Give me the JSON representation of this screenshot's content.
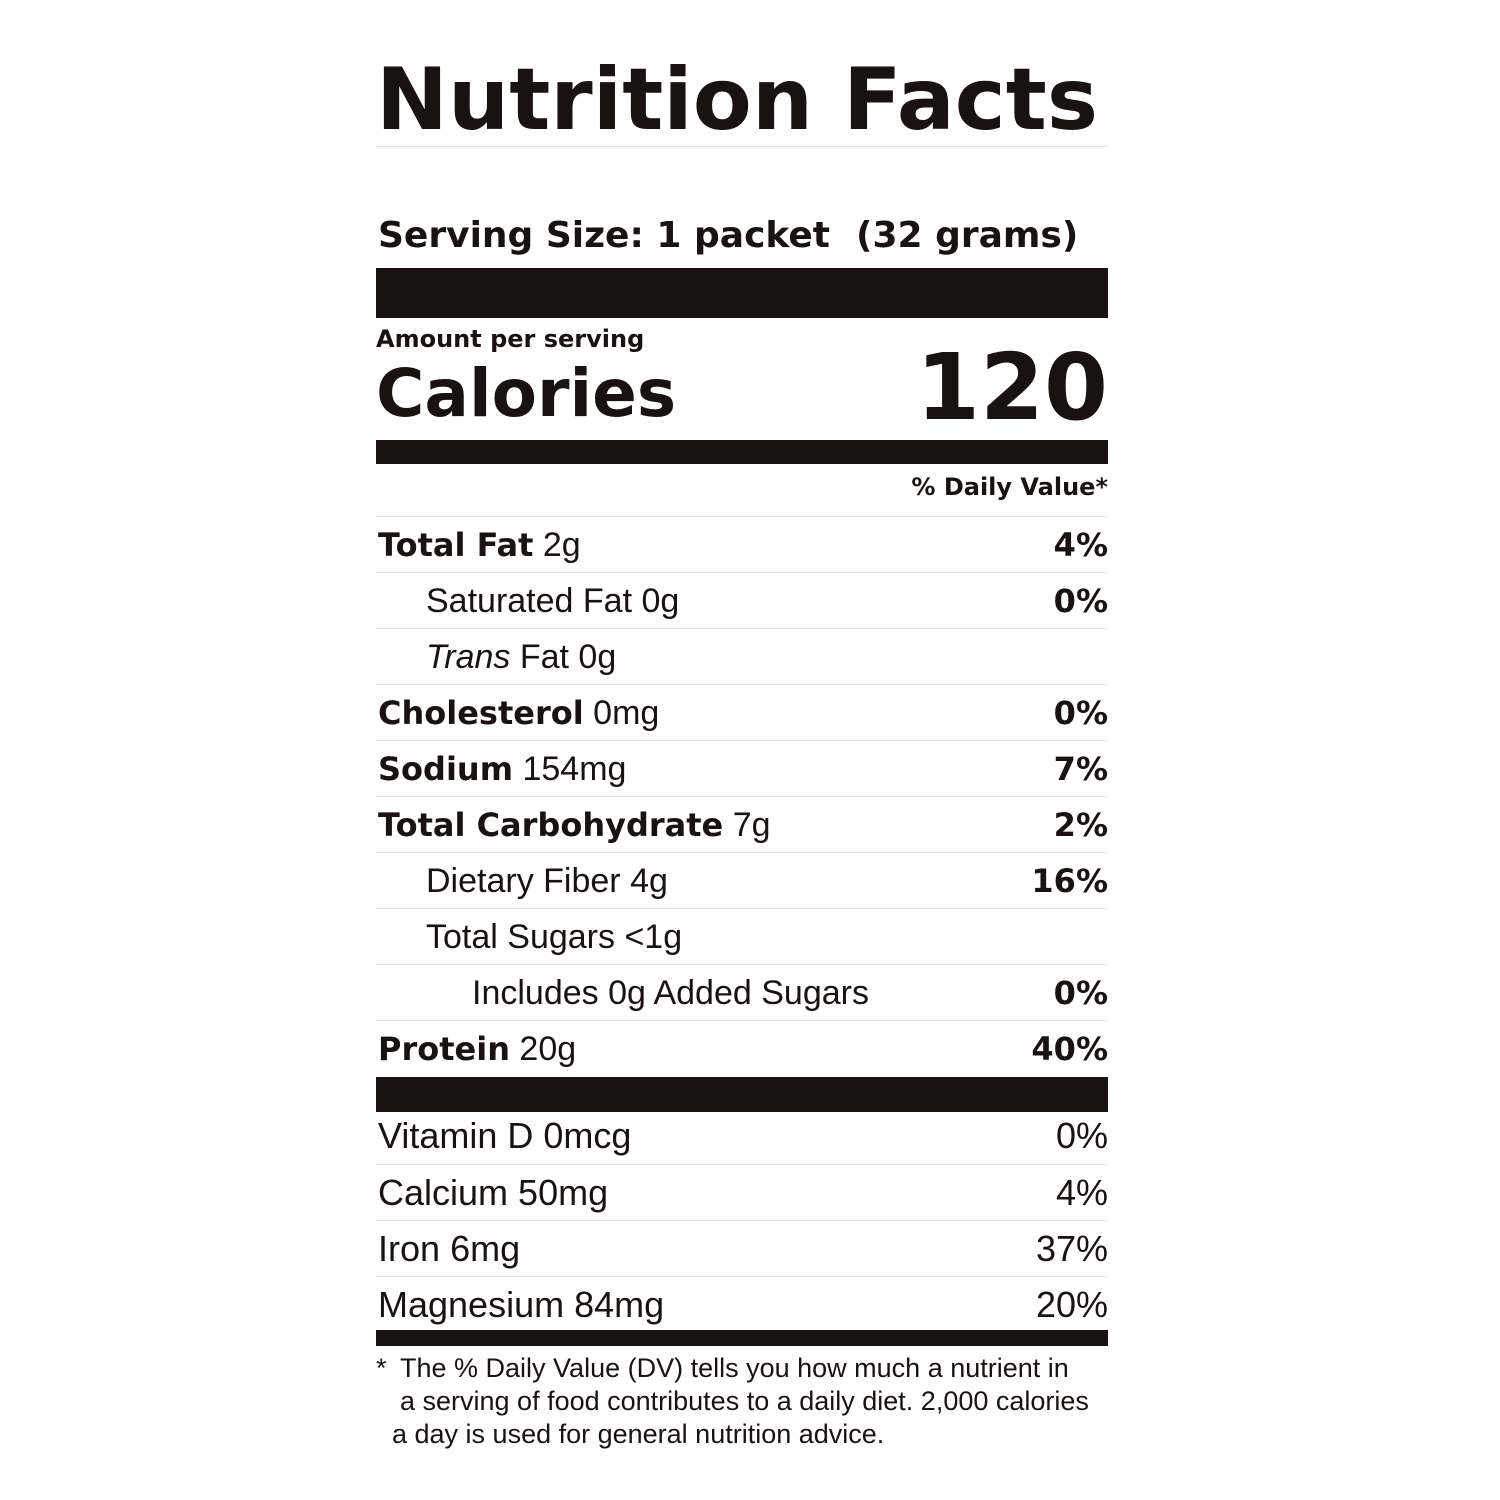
{
  "title": "Nutrition Facts",
  "serving": {
    "label": "Serving Size:",
    "amount": "1 packet",
    "weight": "(32 grams)"
  },
  "calories": {
    "amount_per_serving": "Amount per serving",
    "label": "Calories",
    "value": "120"
  },
  "daily_value_header": "% Daily Value*",
  "nutrients": [
    {
      "name": "Total Fat",
      "amount": "2g",
      "dv": "4%"
    },
    {
      "name": "Saturated Fat",
      "amount": "0g",
      "dv": "0%"
    },
    {
      "name_italic": "Trans",
      "name": "Fat",
      "amount": "0g",
      "dv": ""
    },
    {
      "name": "Cholesterol",
      "amount": "0mg",
      "dv": "0%"
    },
    {
      "name": "Sodium",
      "amount": "154mg",
      "dv": "7%"
    },
    {
      "name": "Total Carbohydrate",
      "amount": "7g",
      "dv": "2%"
    },
    {
      "name": "Dietary Fiber",
      "amount": "4g",
      "dv": "16%"
    },
    {
      "name": "Total Sugars",
      "amount": "<1g",
      "dv": ""
    },
    {
      "name": "Includes 0g Added Sugars",
      "amount": "",
      "dv": "0%"
    },
    {
      "name": "Protein",
      "amount": "20g",
      "dv": "40%"
    }
  ],
  "vitamins": [
    {
      "name": "Vitamin D",
      "amount": "0mcg",
      "dv": "0%"
    },
    {
      "name": "Calcium",
      "amount": "50mg",
      "dv": "4%"
    },
    {
      "name": "Iron",
      "amount": "6mg",
      "dv": "37%"
    },
    {
      "name": "Magnesium",
      "amount": "84mg",
      "dv": "20%"
    }
  ],
  "footnote": {
    "star": "*",
    "line1": "The % Daily Value (DV) tells you how much a nutrient in",
    "line2": "a serving of food contributes to a daily diet. 2,000 calories",
    "line3": "a day is used for general nutrition advice."
  },
  "colors": {
    "ink": "#1a1210",
    "divider": "#e4e4e4",
    "background": "#ffffff"
  }
}
